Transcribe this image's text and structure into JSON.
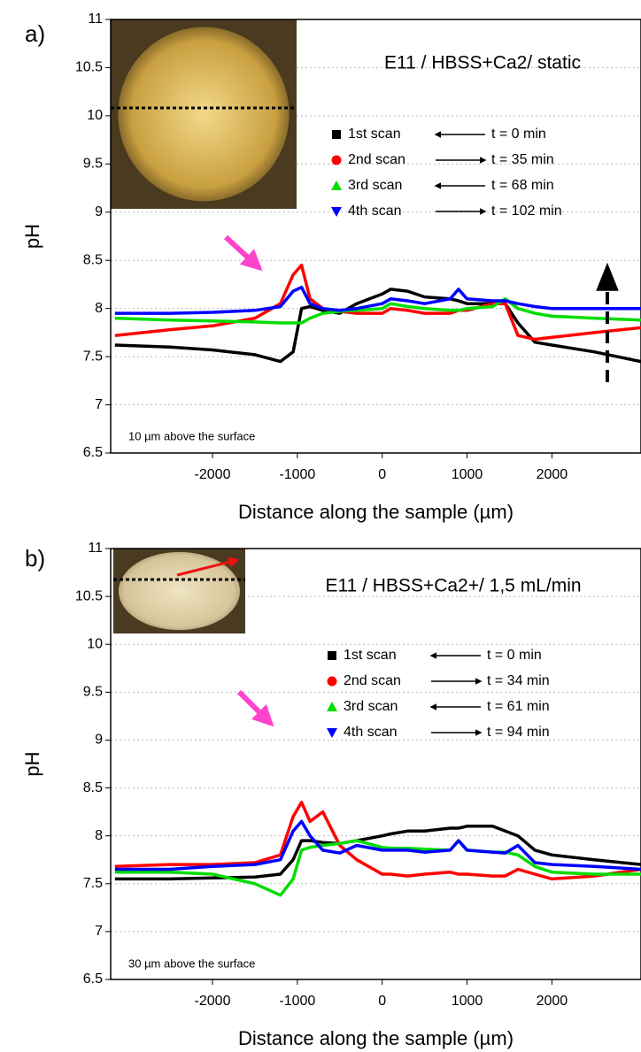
{
  "chart_data": [
    {
      "type": "line",
      "panel": "a)",
      "title": "E11 / HBSS+Ca2/ static",
      "annotation": "10 µm above the surface",
      "xlabel": "Distance along the sample (µm)",
      "ylabel": "pH",
      "xlim": [
        -3200,
        3050
      ],
      "ylim": [
        6.5,
        11
      ],
      "xticks": [
        -2000,
        -1000,
        0,
        1000,
        2000
      ],
      "yticks": [
        6.5,
        7,
        7.5,
        8,
        8.5,
        9,
        9.5,
        10,
        10.5,
        11
      ],
      "grid": true,
      "x": [
        -3150,
        -2500,
        -2000,
        -1500,
        -1200,
        -1050,
        -950,
        -850,
        -700,
        -500,
        -300,
        0,
        100,
        300,
        500,
        800,
        900,
        1000,
        1300,
        1450,
        1600,
        1800,
        2000,
        2500,
        3050
      ],
      "series": [
        {
          "name": "1st scan",
          "time": "t = 0 min",
          "color": "#000000",
          "marker": "square",
          "values": [
            7.62,
            7.6,
            7.57,
            7.52,
            7.45,
            7.55,
            8.0,
            8.02,
            7.98,
            7.95,
            8.05,
            8.15,
            8.2,
            8.18,
            8.12,
            8.1,
            8.08,
            8.05,
            8.05,
            8.05,
            7.85,
            7.65,
            7.62,
            7.55,
            7.45
          ]
        },
        {
          "name": "2nd scan",
          "time": "t = 35 min",
          "color": "#ff0000",
          "marker": "circle",
          "values": [
            7.72,
            7.78,
            7.82,
            7.9,
            8.05,
            8.35,
            8.45,
            8.1,
            8.0,
            7.97,
            7.95,
            7.95,
            8.0,
            7.98,
            7.95,
            7.95,
            7.98,
            7.98,
            8.05,
            8.05,
            7.72,
            7.68,
            7.7,
            7.75,
            7.8
          ]
        },
        {
          "name": "3rd scan",
          "time": "t = 68 min",
          "color": "#00dd00",
          "marker": "triangle-up",
          "values": [
            7.9,
            7.88,
            7.87,
            7.86,
            7.85,
            7.85,
            7.85,
            7.9,
            7.95,
            7.97,
            7.98,
            8.0,
            8.05,
            8.02,
            8.0,
            7.98,
            7.98,
            8.0,
            8.02,
            8.1,
            8.0,
            7.95,
            7.92,
            7.9,
            7.88
          ]
        },
        {
          "name": "4th scan",
          "time": "t = 102 min",
          "color": "#0000ff",
          "marker": "triangle-down",
          "values": [
            7.95,
            7.95,
            7.96,
            7.98,
            8.02,
            8.18,
            8.22,
            8.05,
            8.0,
            7.98,
            8.0,
            8.05,
            8.1,
            8.08,
            8.05,
            8.1,
            8.2,
            8.1,
            8.08,
            8.08,
            8.05,
            8.02,
            8.0,
            8.0,
            8.0
          ]
        }
      ]
    },
    {
      "type": "line",
      "panel": "b)",
      "title": "E11 / HBSS+Ca2+/ 1,5 mL/min",
      "annotation": "30 µm above the surface",
      "xlabel": "Distance along the sample (µm)",
      "ylabel": "pH",
      "xlim": [
        -3200,
        3050
      ],
      "ylim": [
        6.5,
        11
      ],
      "xticks": [
        -2000,
        -1000,
        0,
        1000,
        2000
      ],
      "yticks": [
        6.5,
        7,
        7.5,
        8,
        8.5,
        9,
        9.5,
        10,
        10.5,
        11
      ],
      "grid": true,
      "x": [
        -3150,
        -2500,
        -2000,
        -1500,
        -1200,
        -1050,
        -950,
        -850,
        -700,
        -500,
        -300,
        0,
        100,
        300,
        500,
        800,
        900,
        1000,
        1300,
        1450,
        1600,
        1800,
        2000,
        2500,
        3050
      ],
      "series": [
        {
          "name": "1st scan",
          "time": "t = 0 min",
          "color": "#000000",
          "marker": "square",
          "values": [
            7.55,
            7.55,
            7.56,
            7.57,
            7.6,
            7.75,
            7.95,
            7.95,
            7.93,
            7.92,
            7.95,
            8.0,
            8.02,
            8.05,
            8.05,
            8.08,
            8.08,
            8.1,
            8.1,
            8.05,
            8.0,
            7.85,
            7.8,
            7.75,
            7.7
          ]
        },
        {
          "name": "2nd scan",
          "time": "t = 34 min",
          "color": "#ff0000",
          "marker": "circle",
          "values": [
            7.68,
            7.7,
            7.7,
            7.72,
            7.8,
            8.2,
            8.35,
            8.15,
            8.25,
            7.9,
            7.75,
            7.6,
            7.6,
            7.58,
            7.6,
            7.62,
            7.6,
            7.6,
            7.58,
            7.58,
            7.65,
            7.6,
            7.55,
            7.58,
            7.65
          ]
        },
        {
          "name": "3rd scan",
          "time": "t = 61 min",
          "color": "#00dd00",
          "marker": "triangle-up",
          "values": [
            7.62,
            7.62,
            7.6,
            7.5,
            7.38,
            7.55,
            7.85,
            7.88,
            7.9,
            7.92,
            7.95,
            7.88,
            7.87,
            7.87,
            7.86,
            7.85,
            7.95,
            7.85,
            7.83,
            7.83,
            7.8,
            7.68,
            7.62,
            7.6,
            7.6
          ]
        },
        {
          "name": "4th scan",
          "time": "t = 94 min",
          "color": "#0000ff",
          "marker": "triangle-down",
          "values": [
            7.65,
            7.65,
            7.68,
            7.7,
            7.75,
            8.05,
            8.15,
            8.0,
            7.85,
            7.82,
            7.9,
            7.85,
            7.85,
            7.85,
            7.83,
            7.85,
            7.95,
            7.85,
            7.83,
            7.82,
            7.9,
            7.72,
            7.7,
            7.68,
            7.65
          ]
        }
      ]
    }
  ]
}
